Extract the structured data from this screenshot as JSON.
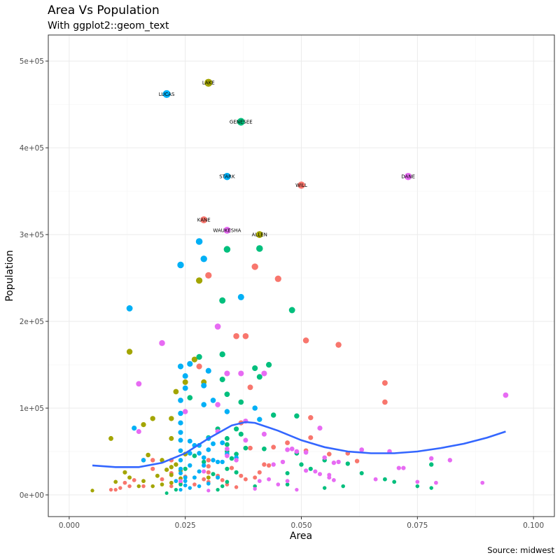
{
  "chart_data": {
    "type": "scatter",
    "title": "Area Vs Population",
    "subtitle": "With ggplot2::geom_text",
    "xlabel": "Area",
    "ylabel": "Population",
    "caption": "Source: midwest",
    "xlim": [
      -0.0045,
      0.1045
    ],
    "ylim": [
      -25000,
      530000
    ],
    "x_ticks": [
      {
        "value": 0.0,
        "label": "0.000"
      },
      {
        "value": 0.025,
        "label": "0.025"
      },
      {
        "value": 0.05,
        "label": "0.050"
      },
      {
        "value": 0.075,
        "label": "0.075"
      },
      {
        "value": 0.1,
        "label": "0.100"
      }
    ],
    "y_ticks": [
      {
        "value": 0,
        "label": "0e+00"
      },
      {
        "value": 100000,
        "label": "1e+05"
      },
      {
        "value": 200000,
        "label": "2e+05"
      },
      {
        "value": 300000,
        "label": "3e+05"
      },
      {
        "value": 400000,
        "label": "4e+05"
      },
      {
        "value": 500000,
        "label": "5e+05"
      }
    ],
    "grid": true,
    "legend": "none",
    "colors": {
      "IL": "#F8766D",
      "IN": "#A3A500",
      "MI": "#00BF7D",
      "OH": "#00B0F6",
      "WI": "#E76BF3",
      "smooth": "#3366FF"
    },
    "labeled_points": [
      {
        "label": "LAKE",
        "x": 0.03,
        "y": 475000,
        "state": "IN"
      },
      {
        "label": "LUCAS",
        "x": 0.021,
        "y": 462000,
        "state": "OH"
      },
      {
        "label": "GENESEE",
        "x": 0.037,
        "y": 430000,
        "state": "MI"
      },
      {
        "label": "DANE",
        "x": 0.073,
        "y": 367000,
        "state": "WI"
      },
      {
        "label": "STARK",
        "x": 0.034,
        "y": 367000,
        "state": "OH"
      },
      {
        "label": "WILL",
        "x": 0.05,
        "y": 357000,
        "state": "IL"
      },
      {
        "label": "KANE",
        "x": 0.029,
        "y": 317000,
        "state": "IL"
      },
      {
        "label": "WAUKESHA",
        "x": 0.034,
        "y": 305000,
        "state": "WI"
      },
      {
        "label": "ALLEN",
        "x": 0.041,
        "y": 300000,
        "state": "IN"
      }
    ],
    "series": [
      {
        "name": "IL",
        "color": "#F8766D",
        "points": [
          [
            0.029,
            317000
          ],
          [
            0.05,
            357000
          ],
          [
            0.03,
            253000
          ],
          [
            0.04,
            263000
          ],
          [
            0.045,
            249000
          ],
          [
            0.036,
            183000
          ],
          [
            0.038,
            183000
          ],
          [
            0.051,
            178000
          ],
          [
            0.058,
            173000
          ],
          [
            0.028,
            148000
          ],
          [
            0.039,
            124000
          ],
          [
            0.068,
            129000
          ],
          [
            0.068,
            107000
          ],
          [
            0.052,
            89000
          ],
          [
            0.037,
            83000
          ],
          [
            0.047,
            60000
          ],
          [
            0.052,
            66000
          ],
          [
            0.039,
            54000
          ],
          [
            0.044,
            55000
          ],
          [
            0.03,
            40000
          ],
          [
            0.018,
            40000
          ],
          [
            0.016,
            40000
          ],
          [
            0.022,
            40000
          ],
          [
            0.03,
            33000
          ],
          [
            0.018,
            30000
          ],
          [
            0.035,
            31000
          ],
          [
            0.022,
            25000
          ],
          [
            0.025,
            21000
          ],
          [
            0.029,
            18000
          ],
          [
            0.032,
            22000
          ],
          [
            0.03,
            15000
          ],
          [
            0.027,
            12000
          ],
          [
            0.033,
            17000
          ],
          [
            0.038,
            18000
          ],
          [
            0.041,
            26000
          ],
          [
            0.042,
            35000
          ],
          [
            0.043,
            34000
          ],
          [
            0.04,
            20000
          ],
          [
            0.037,
            22000
          ],
          [
            0.06,
            48000
          ],
          [
            0.051,
            51000
          ],
          [
            0.056,
            47000
          ],
          [
            0.062,
            39000
          ],
          [
            0.024,
            14000
          ],
          [
            0.022,
            10000
          ],
          [
            0.016,
            10000
          ],
          [
            0.013,
            10000
          ],
          [
            0.011,
            8000
          ],
          [
            0.009,
            6000
          ],
          [
            0.01,
            6000
          ],
          [
            0.012,
            14000
          ],
          [
            0.014,
            17000
          ],
          [
            0.02,
            18000
          ],
          [
            0.034,
            12000
          ],
          [
            0.036,
            9000
          ],
          [
            0.03,
            26000
          ]
        ]
      },
      {
        "name": "IN",
        "color": "#A3A500",
        "points": [
          [
            0.03,
            475000
          ],
          [
            0.041,
            300000
          ],
          [
            0.028,
            247000
          ],
          [
            0.013,
            165000
          ],
          [
            0.027,
            156000
          ],
          [
            0.029,
            130000
          ],
          [
            0.025,
            130000
          ],
          [
            0.023,
            119000
          ],
          [
            0.018,
            88000
          ],
          [
            0.016,
            81000
          ],
          [
            0.009,
            65000
          ],
          [
            0.022,
            88000
          ],
          [
            0.022,
            65000
          ],
          [
            0.017,
            46000
          ],
          [
            0.02,
            40000
          ],
          [
            0.022,
            32000
          ],
          [
            0.022,
            23000
          ],
          [
            0.019,
            22000
          ],
          [
            0.024,
            19000
          ],
          [
            0.02,
            12000
          ],
          [
            0.018,
            10000
          ],
          [
            0.016,
            16000
          ],
          [
            0.013,
            20000
          ],
          [
            0.012,
            26000
          ],
          [
            0.01,
            15000
          ],
          [
            0.005,
            5000
          ],
          [
            0.021,
            29000
          ],
          [
            0.023,
            35000
          ],
          [
            0.024,
            28000
          ],
          [
            0.025,
            47000
          ],
          [
            0.022,
            14000
          ],
          [
            0.015,
            10000
          ],
          [
            0.03,
            20000
          ]
        ]
      },
      {
        "name": "MI",
        "color": "#00BF7D",
        "points": [
          [
            0.037,
            430000
          ],
          [
            0.034,
            283000
          ],
          [
            0.041,
            284000
          ],
          [
            0.033,
            224000
          ],
          [
            0.048,
            213000
          ],
          [
            0.033,
            162000
          ],
          [
            0.028,
            159000
          ],
          [
            0.043,
            150000
          ],
          [
            0.04,
            146000
          ],
          [
            0.041,
            136000
          ],
          [
            0.033,
            133000
          ],
          [
            0.034,
            116000
          ],
          [
            0.026,
            112000
          ],
          [
            0.037,
            107000
          ],
          [
            0.044,
            92000
          ],
          [
            0.049,
            91000
          ],
          [
            0.032,
            76000
          ],
          [
            0.036,
            76000
          ],
          [
            0.034,
            65000
          ],
          [
            0.037,
            70000
          ],
          [
            0.03,
            66000
          ],
          [
            0.038,
            54000
          ],
          [
            0.034,
            58000
          ],
          [
            0.034,
            50000
          ],
          [
            0.035,
            42000
          ],
          [
            0.036,
            47000
          ],
          [
            0.042,
            53000
          ],
          [
            0.049,
            48000
          ],
          [
            0.055,
            40000
          ],
          [
            0.05,
            35000
          ],
          [
            0.06,
            36000
          ],
          [
            0.063,
            25000
          ],
          [
            0.068,
            18000
          ],
          [
            0.07,
            15000
          ],
          [
            0.075,
            10000
          ],
          [
            0.078,
            8000
          ],
          [
            0.078,
            35000
          ],
          [
            0.059,
            10000
          ],
          [
            0.055,
            8000
          ],
          [
            0.047,
            12000
          ],
          [
            0.04,
            10000
          ],
          [
            0.034,
            15000
          ],
          [
            0.034,
            30000
          ],
          [
            0.031,
            24000
          ],
          [
            0.029,
            38000
          ],
          [
            0.027,
            45000
          ],
          [
            0.025,
            30000
          ],
          [
            0.024,
            12000
          ],
          [
            0.021,
            2000
          ],
          [
            0.023,
            6000
          ],
          [
            0.032,
            6000
          ],
          [
            0.033,
            10000
          ],
          [
            0.036,
            26000
          ],
          [
            0.047,
            25000
          ],
          [
            0.052,
            30000
          ]
        ]
      },
      {
        "name": "OH",
        "color": "#00B0F6",
        "points": [
          [
            0.021,
            462000
          ],
          [
            0.034,
            367000
          ],
          [
            0.028,
            292000
          ],
          [
            0.029,
            272000
          ],
          [
            0.024,
            265000
          ],
          [
            0.037,
            228000
          ],
          [
            0.013,
            215000
          ],
          [
            0.024,
            148000
          ],
          [
            0.026,
            151000
          ],
          [
            0.03,
            143000
          ],
          [
            0.025,
            137000
          ],
          [
            0.029,
            126000
          ],
          [
            0.025,
            123000
          ],
          [
            0.031,
            109000
          ],
          [
            0.024,
            109000
          ],
          [
            0.029,
            104000
          ],
          [
            0.034,
            96000
          ],
          [
            0.04,
            100000
          ],
          [
            0.014,
            77000
          ],
          [
            0.024,
            94000
          ],
          [
            0.024,
            83000
          ],
          [
            0.024,
            72000
          ],
          [
            0.03,
            65000
          ],
          [
            0.024,
            63000
          ],
          [
            0.028,
            57000
          ],
          [
            0.031,
            59000
          ],
          [
            0.033,
            60000
          ],
          [
            0.024,
            51000
          ],
          [
            0.026,
            48000
          ],
          [
            0.028,
            48000
          ],
          [
            0.029,
            43000
          ],
          [
            0.031,
            40000
          ],
          [
            0.033,
            38000
          ],
          [
            0.016,
            40000
          ],
          [
            0.024,
            40000
          ],
          [
            0.026,
            34000
          ],
          [
            0.024,
            30000
          ],
          [
            0.028,
            27000
          ],
          [
            0.024,
            25000
          ],
          [
            0.025,
            20000
          ],
          [
            0.027,
            20000
          ],
          [
            0.023,
            16000
          ],
          [
            0.025,
            16000
          ],
          [
            0.025,
            11000
          ],
          [
            0.028,
            10000
          ],
          [
            0.03,
            13000
          ],
          [
            0.032,
            20000
          ],
          [
            0.026,
            8000
          ],
          [
            0.024,
            6000
          ],
          [
            0.029,
            34000
          ],
          [
            0.03,
            52000
          ],
          [
            0.034,
            47000
          ],
          [
            0.036,
            43000
          ],
          [
            0.032,
            38000
          ],
          [
            0.027,
            57000
          ],
          [
            0.026,
            62000
          ],
          [
            0.041,
            87000
          ]
        ]
      },
      {
        "name": "WI",
        "color": "#E76BF3",
        "points": [
          [
            0.073,
            367000
          ],
          [
            0.034,
            305000
          ],
          [
            0.032,
            194000
          ],
          [
            0.02,
            175000
          ],
          [
            0.034,
            140000
          ],
          [
            0.037,
            140000
          ],
          [
            0.042,
            140000
          ],
          [
            0.015,
            128000
          ],
          [
            0.032,
            104000
          ],
          [
            0.094,
            115000
          ],
          [
            0.025,
            96000
          ],
          [
            0.038,
            85000
          ],
          [
            0.015,
            73000
          ],
          [
            0.032,
            73000
          ],
          [
            0.054,
            77000
          ],
          [
            0.042,
            70000
          ],
          [
            0.047,
            52000
          ],
          [
            0.048,
            53000
          ],
          [
            0.049,
            50000
          ],
          [
            0.051,
            49000
          ],
          [
            0.063,
            52000
          ],
          [
            0.069,
            50000
          ],
          [
            0.055,
            43000
          ],
          [
            0.057,
            37000
          ],
          [
            0.058,
            38000
          ],
          [
            0.051,
            28000
          ],
          [
            0.053,
            27000
          ],
          [
            0.054,
            24000
          ],
          [
            0.056,
            23000
          ],
          [
            0.056,
            20000
          ],
          [
            0.057,
            17000
          ],
          [
            0.066,
            18000
          ],
          [
            0.071,
            31000
          ],
          [
            0.072,
            31000
          ],
          [
            0.078,
            42000
          ],
          [
            0.082,
            40000
          ],
          [
            0.075,
            15000
          ],
          [
            0.079,
            14000
          ],
          [
            0.089,
            14000
          ],
          [
            0.046,
            38000
          ],
          [
            0.044,
            35000
          ],
          [
            0.036,
            40000
          ],
          [
            0.034,
            53000
          ],
          [
            0.038,
            63000
          ],
          [
            0.034,
            45000
          ],
          [
            0.029,
            27000
          ],
          [
            0.041,
            16000
          ],
          [
            0.043,
            18000
          ],
          [
            0.045,
            12000
          ],
          [
            0.047,
            16000
          ],
          [
            0.049,
            6000
          ],
          [
            0.04,
            7000
          ],
          [
            0.03,
            5000
          ],
          [
            0.024,
            16000
          ]
        ]
      }
    ],
    "smooth_line": {
      "method": "loess",
      "x": [
        0.005,
        0.01,
        0.015,
        0.02,
        0.025,
        0.03,
        0.035,
        0.038,
        0.04,
        0.045,
        0.05,
        0.055,
        0.06,
        0.065,
        0.07,
        0.075,
        0.08,
        0.085,
        0.09,
        0.094
      ],
      "y": [
        34000,
        32000,
        32000,
        37000,
        48000,
        65000,
        80000,
        84000,
        83000,
        74000,
        63000,
        55000,
        50000,
        48000,
        48000,
        50000,
        54000,
        59000,
        66000,
        73000
      ]
    }
  }
}
